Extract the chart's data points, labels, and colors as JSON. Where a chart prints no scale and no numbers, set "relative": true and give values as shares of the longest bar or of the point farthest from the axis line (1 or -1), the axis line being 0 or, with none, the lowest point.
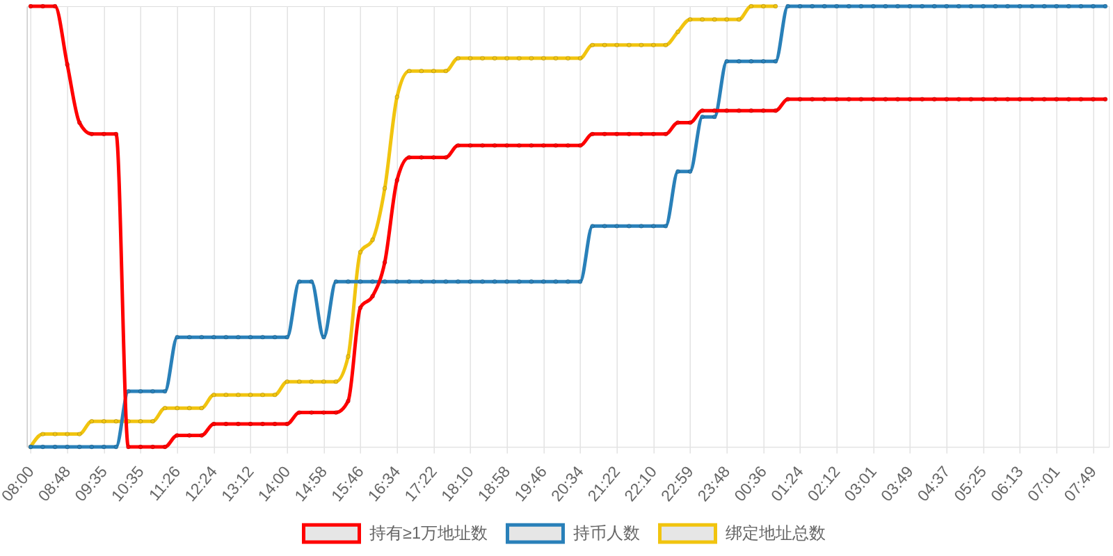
{
  "chart_data": {
    "type": "line",
    "relative": true,
    "categories": [
      "08:00",
      null,
      null,
      "08:48",
      null,
      null,
      "09:35",
      null,
      null,
      "10:35",
      null,
      null,
      "11:26",
      null,
      null,
      "12:24",
      null,
      null,
      "13:12",
      null,
      null,
      "14:00",
      null,
      null,
      "14:58",
      null,
      null,
      "15:46",
      null,
      null,
      "16:34",
      null,
      null,
      "17:22",
      null,
      null,
      "18:10",
      null,
      null,
      "18:58",
      null,
      null,
      "19:46",
      null,
      null,
      "20:34",
      null,
      null,
      "21:22",
      null,
      null,
      "22:10",
      null,
      null,
      "22:59",
      null,
      null,
      "23:48",
      null,
      null,
      "00:36",
      null,
      null,
      "01:24",
      null,
      null,
      "02:12",
      null,
      null,
      "03:01",
      null,
      null,
      "03:49",
      null,
      null,
      "04:37",
      null,
      null,
      "05:25",
      null,
      null,
      "06:13",
      null,
      null,
      "07:01",
      null,
      null,
      "07:49",
      null
    ],
    "series": [
      {
        "name": "持有≥1万地址数",
        "color": "#ff0000",
        "values": [
          1,
          1,
          1,
          0.868,
          0.736,
          0.71,
          0.71,
          0.71,
          0,
          0,
          0,
          0,
          0.026,
          0.026,
          0.026,
          0.052,
          0.052,
          0.052,
          0.052,
          0.052,
          0.052,
          0.052,
          0.078,
          0.078,
          0.078,
          0.078,
          0.104,
          0.316,
          0.342,
          0.419,
          0.605,
          0.657,
          0.657,
          0.657,
          0.657,
          0.684,
          0.684,
          0.684,
          0.684,
          0.684,
          0.684,
          0.684,
          0.684,
          0.684,
          0.684,
          0.684,
          0.71,
          0.71,
          0.71,
          0.71,
          0.71,
          0.71,
          0.71,
          0.736,
          0.736,
          0.763,
          0.763,
          0.763,
          0.763,
          0.763,
          0.763,
          0.763,
          0.789,
          0.789,
          0.789,
          0.789,
          0.789,
          0.789,
          0.789,
          0.789,
          0.789,
          0.789,
          0.789,
          0.789,
          0.789,
          0.789,
          0.789,
          0.789,
          0.789,
          0.789,
          0.789,
          0.789,
          0.789,
          0.789,
          0.789,
          0.789,
          0.789,
          0.789,
          0.789
        ]
      },
      {
        "name": "持币人数",
        "color": "#2980b9",
        "values": [
          0,
          0,
          0,
          0,
          0,
          0,
          0,
          0,
          0.126,
          0.126,
          0.126,
          0.126,
          0.249,
          0.249,
          0.249,
          0.249,
          0.249,
          0.249,
          0.249,
          0.249,
          0.249,
          0.249,
          0.375,
          0.375,
          0.249,
          0.375,
          0.375,
          0.375,
          0.375,
          0.375,
          0.375,
          0.375,
          0.375,
          0.375,
          0.375,
          0.375,
          0.375,
          0.375,
          0.375,
          0.375,
          0.375,
          0.375,
          0.375,
          0.375,
          0.375,
          0.375,
          0.501,
          0.501,
          0.501,
          0.501,
          0.501,
          0.501,
          0.501,
          0.625,
          0.625,
          0.749,
          0.749,
          0.875,
          0.875,
          0.875,
          0.875,
          0.875,
          1,
          1,
          1,
          1,
          1,
          1,
          1,
          1,
          1,
          1,
          1,
          1,
          1,
          1,
          1,
          1,
          1,
          1,
          1,
          1,
          1,
          1,
          1,
          1,
          1,
          1,
          1
        ]
      },
      {
        "name": "绑定地址总数",
        "color": "#f1c40f",
        "values": [
          0,
          0.029,
          0.029,
          0.029,
          0.029,
          0.058,
          0.058,
          0.058,
          0.058,
          0.058,
          0.058,
          0.088,
          0.088,
          0.088,
          0.088,
          0.118,
          0.118,
          0.118,
          0.118,
          0.118,
          0.118,
          0.148,
          0.148,
          0.148,
          0.148,
          0.148,
          0.205,
          0.442,
          0.47,
          0.587,
          0.794,
          0.853,
          0.853,
          0.853,
          0.853,
          0.882,
          0.882,
          0.882,
          0.882,
          0.882,
          0.882,
          0.882,
          0.882,
          0.882,
          0.882,
          0.882,
          0.912,
          0.912,
          0.912,
          0.912,
          0.912,
          0.912,
          0.912,
          0.942,
          0.97,
          0.97,
          0.97,
          0.97,
          0.97,
          1,
          1,
          1,
          null,
          null,
          null,
          null,
          null,
          null,
          null,
          null,
          null,
          null,
          null,
          null,
          null,
          null,
          null,
          null,
          null,
          null,
          null,
          null,
          null,
          null,
          null,
          null,
          null,
          null,
          null
        ]
      }
    ],
    "grid": "x",
    "legend": "bottom",
    "marker": "circle",
    "line_style": "solid"
  }
}
